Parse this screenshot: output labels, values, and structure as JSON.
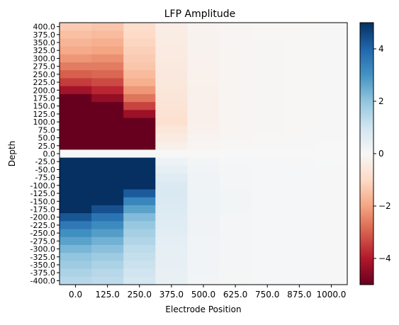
{
  "chart_data": {
    "type": "heatmap",
    "title": "LFP Amplitude",
    "xlabel": "Electrode Position",
    "ylabel": "Depth",
    "x": [
      "0.0",
      "125.0",
      "250.0",
      "375.0",
      "500.0",
      "625.0",
      "750.0",
      "875.0",
      "1000.0"
    ],
    "y": [
      "400.0",
      "375.0",
      "350.0",
      "325.0",
      "300.0",
      "275.0",
      "250.0",
      "225.0",
      "200.0",
      "175.0",
      "150.0",
      "125.0",
      "100.0",
      "75.0",
      "50.0",
      "25.0",
      "0.0",
      "-25.0",
      "-50.0",
      "-75.0",
      "-100.0",
      "-125.0",
      "-150.0",
      "-175.0",
      "-200.0",
      "-225.0",
      "-250.0",
      "-275.0",
      "-300.0",
      "-325.0",
      "-350.0",
      "-375.0",
      "-400.0"
    ],
    "values": [
      [
        -1.3,
        -1.4,
        -0.9,
        -0.35,
        -0.15,
        -0.08,
        -0.05,
        -0.04,
        -0.03
      ],
      [
        -1.5,
        -1.6,
        -1.0,
        -0.4,
        -0.17,
        -0.09,
        -0.05,
        -0.04,
        -0.03
      ],
      [
        -1.7,
        -1.8,
        -1.1,
        -0.42,
        -0.18,
        -0.09,
        -0.06,
        -0.04,
        -0.03
      ],
      [
        -1.9,
        -2.0,
        -1.2,
        -0.45,
        -0.19,
        -0.1,
        -0.06,
        -0.04,
        -0.03
      ],
      [
        -2.2,
        -2.3,
        -1.3,
        -0.48,
        -0.2,
        -0.1,
        -0.06,
        -0.04,
        -0.03
      ],
      [
        -2.6,
        -2.6,
        -1.4,
        -0.5,
        -0.21,
        -0.11,
        -0.06,
        -0.04,
        -0.03
      ],
      [
        -3.0,
        -2.9,
        -1.6,
        -0.52,
        -0.22,
        -0.11,
        -0.06,
        -0.04,
        -0.03
      ],
      [
        -3.5,
        -3.3,
        -1.8,
        -0.55,
        -0.23,
        -0.11,
        -0.06,
        -0.04,
        -0.03
      ],
      [
        -4.2,
        -3.8,
        -2.2,
        -0.6,
        -0.24,
        -0.12,
        -0.07,
        -0.05,
        -0.03
      ],
      [
        -5.0,
        -4.4,
        -2.7,
        -0.65,
        -0.25,
        -0.12,
        -0.07,
        -0.05,
        -0.03
      ],
      [
        -5.0,
        -5.0,
        -3.4,
        -0.7,
        -0.25,
        -0.12,
        -0.07,
        -0.05,
        -0.03
      ],
      [
        -5.0,
        -5.0,
        -4.3,
        -0.75,
        -0.25,
        -0.12,
        -0.07,
        -0.05,
        -0.03
      ],
      [
        -5.0,
        -5.0,
        -5.0,
        -0.8,
        -0.25,
        -0.12,
        -0.07,
        -0.05,
        -0.03
      ],
      [
        -5.0,
        -5.0,
        -5.0,
        -0.6,
        -0.2,
        -0.1,
        -0.06,
        -0.04,
        -0.03
      ],
      [
        -5.0,
        -5.0,
        -5.0,
        -0.45,
        -0.15,
        -0.08,
        -0.05,
        -0.03,
        -0.02
      ],
      [
        -5.0,
        -5.0,
        -5.0,
        -0.3,
        -0.1,
        -0.05,
        -0.03,
        -0.02,
        -0.01
      ],
      [
        0.02,
        0.02,
        0.02,
        0.01,
        0.0,
        0.0,
        0.0,
        0.0,
        0.0
      ],
      [
        5.0,
        5.0,
        5.0,
        0.3,
        0.12,
        0.06,
        0.04,
        0.03,
        0.02
      ],
      [
        5.0,
        5.0,
        5.0,
        0.45,
        0.17,
        0.08,
        0.05,
        0.04,
        0.03
      ],
      [
        5.0,
        5.0,
        5.0,
        0.6,
        0.2,
        0.1,
        0.06,
        0.04,
        0.03
      ],
      [
        5.0,
        5.0,
        5.0,
        0.75,
        0.22,
        0.11,
        0.07,
        0.05,
        0.03
      ],
      [
        5.0,
        5.0,
        4.2,
        0.8,
        0.24,
        0.12,
        0.07,
        0.05,
        0.03
      ],
      [
        5.0,
        5.0,
        3.3,
        0.75,
        0.24,
        0.12,
        0.07,
        0.05,
        0.03
      ],
      [
        5.0,
        4.4,
        2.7,
        0.7,
        0.23,
        0.12,
        0.07,
        0.05,
        0.03
      ],
      [
        4.3,
        3.7,
        2.2,
        0.65,
        0.22,
        0.11,
        0.07,
        0.05,
        0.03
      ],
      [
        3.6,
        3.2,
        1.9,
        0.6,
        0.21,
        0.11,
        0.06,
        0.04,
        0.03
      ],
      [
        3.1,
        2.8,
        1.7,
        0.55,
        0.2,
        0.1,
        0.06,
        0.04,
        0.03
      ],
      [
        2.7,
        2.4,
        1.5,
        0.5,
        0.19,
        0.1,
        0.06,
        0.04,
        0.03
      ],
      [
        2.3,
        2.1,
        1.3,
        0.47,
        0.18,
        0.09,
        0.06,
        0.04,
        0.03
      ],
      [
        2.0,
        1.8,
        1.2,
        0.44,
        0.17,
        0.09,
        0.05,
        0.04,
        0.03
      ],
      [
        1.8,
        1.6,
        1.1,
        0.42,
        0.16,
        0.09,
        0.05,
        0.04,
        0.03
      ],
      [
        1.6,
        1.4,
        1.0,
        0.4,
        0.15,
        0.08,
        0.05,
        0.04,
        0.03
      ],
      [
        1.4,
        1.3,
        0.9,
        0.38,
        0.14,
        0.08,
        0.05,
        0.04,
        0.03
      ]
    ],
    "colormap": "RdBu",
    "clim": [
      -5,
      5
    ],
    "colorbar": {
      "ticks": [
        "4",
        "2",
        "0",
        "−2",
        "−4"
      ],
      "tick_values": [
        4,
        2,
        0,
        -2,
        -4
      ]
    },
    "grid": false
  }
}
